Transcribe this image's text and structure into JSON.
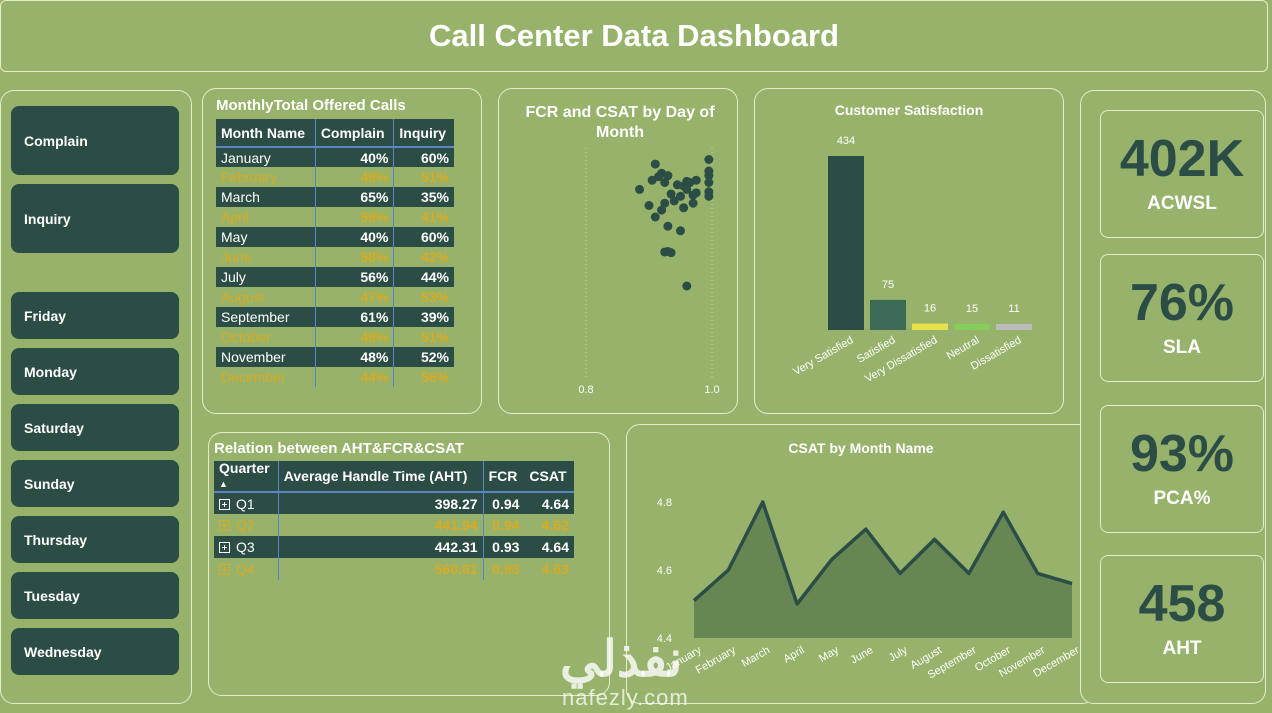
{
  "header": {
    "title": "Call Center Data Dashboard"
  },
  "slicers": {
    "call_types": [
      "Complain",
      "Inquiry"
    ],
    "days": [
      "Friday",
      "Monday",
      "Saturday",
      "Sunday",
      "Thursday",
      "Tuesday",
      "Wednesday"
    ]
  },
  "monthly_table": {
    "title": "MonthlyTotal Offered Calls",
    "columns": [
      "Month Name",
      "Complain",
      "Inquiry"
    ],
    "rows": [
      [
        "January",
        "40%",
        "60%"
      ],
      [
        "February",
        "49%",
        "51%"
      ],
      [
        "March",
        "65%",
        "35%"
      ],
      [
        "April",
        "59%",
        "41%"
      ],
      [
        "May",
        "40%",
        "60%"
      ],
      [
        "June",
        "58%",
        "42%"
      ],
      [
        "July",
        "56%",
        "44%"
      ],
      [
        "August",
        "47%",
        "53%"
      ],
      [
        "September",
        "61%",
        "39%"
      ],
      [
        "October",
        "49%",
        "51%"
      ],
      [
        "November",
        "48%",
        "52%"
      ],
      [
        "December",
        "44%",
        "56%"
      ]
    ]
  },
  "aht_table": {
    "title": "Relation between AHT&FCR&CSAT",
    "columns": [
      "Quarter",
      "Average Handle Time (AHT)",
      "FCR",
      "CSAT"
    ],
    "rows": [
      [
        "Q1",
        "398.27",
        "0.94",
        "4.64"
      ],
      [
        "Q2",
        "441.94",
        "0.94",
        "4.62"
      ],
      [
        "Q3",
        "442.31",
        "0.93",
        "4.64"
      ],
      [
        "Q4",
        "560.61",
        "0.93",
        "4.63"
      ]
    ],
    "sort_indicator": "▲"
  },
  "kpis": [
    {
      "value": "402K",
      "label": "ACWSL"
    },
    {
      "value": "76%",
      "label": "SLA"
    },
    {
      "value": "93%",
      "label": "PCA%"
    },
    {
      "value": "458",
      "label": "AHT"
    }
  ],
  "colors": {
    "background": "#97b26a",
    "dark_green": "#2c4d45",
    "gold": "#d9aa22",
    "border": "#e4edc8"
  },
  "watermark": {
    "arabic": "نفذلي",
    "latin": "nafezly.com"
  },
  "chart_data": [
    {
      "type": "scatter",
      "title": "FCR and CSAT by Day of Month",
      "xlim": [
        0.8,
        1.0
      ],
      "x_ticks": [
        "0.8",
        "1.0"
      ],
      "grid": false,
      "points": [
        [
          0.91,
          0.93
        ],
        [
          0.92,
          0.89
        ],
        [
          0.93,
          0.88
        ],
        [
          0.915,
          0.875
        ],
        [
          0.905,
          0.86
        ],
        [
          0.925,
          0.85
        ],
        [
          0.885,
          0.82
        ],
        [
          0.935,
          0.8
        ],
        [
          0.95,
          0.79
        ],
        [
          0.96,
          0.82
        ],
        [
          0.965,
          0.85
        ],
        [
          0.975,
          0.86
        ],
        [
          0.945,
          0.84
        ],
        [
          0.955,
          0.835
        ],
        [
          0.96,
          0.855
        ],
        [
          0.97,
          0.795
        ],
        [
          0.975,
          0.805
        ],
        [
          0.94,
          0.77
        ],
        [
          0.925,
          0.76
        ],
        [
          0.9,
          0.75
        ],
        [
          0.92,
          0.73
        ],
        [
          0.91,
          0.7
        ],
        [
          0.93,
          0.66
        ],
        [
          0.95,
          0.64
        ],
        [
          0.955,
          0.74
        ],
        [
          0.97,
          0.76
        ],
        [
          0.995,
          0.95
        ],
        [
          0.995,
          0.9
        ],
        [
          0.995,
          0.88
        ],
        [
          0.995,
          0.85
        ],
        [
          0.995,
          0.81
        ],
        [
          0.995,
          0.79
        ],
        [
          0.93,
          0.55
        ],
        [
          0.935,
          0.545
        ],
        [
          0.925,
          0.548
        ],
        [
          0.96,
          0.4
        ]
      ]
    },
    {
      "type": "bar",
      "title": "Customer Satisfaction",
      "categories": [
        "Very Satisfied",
        "Satisfied",
        "Very Dissatisfied",
        "Neutral",
        "Dissatisfied"
      ],
      "values": [
        434,
        75,
        16,
        15,
        11
      ],
      "bar_colors": [
        "#2c4d45",
        "#3d6a55",
        "#e8e04a",
        "#86cc5a",
        "#bcbcbc"
      ],
      "ylim": [
        0,
        434
      ]
    },
    {
      "type": "area",
      "title": "CSAT by Month Name",
      "categories": [
        "January",
        "February",
        "March",
        "April",
        "May",
        "June",
        "July",
        "August",
        "September",
        "October",
        "November",
        "December"
      ],
      "values": [
        4.51,
        4.6,
        4.8,
        4.5,
        4.63,
        4.72,
        4.59,
        4.69,
        4.59,
        4.77,
        4.59,
        4.56
      ],
      "ylim": [
        4.4,
        4.8
      ],
      "y_ticks": [
        "4.4",
        "4.6",
        "4.8"
      ]
    }
  ]
}
